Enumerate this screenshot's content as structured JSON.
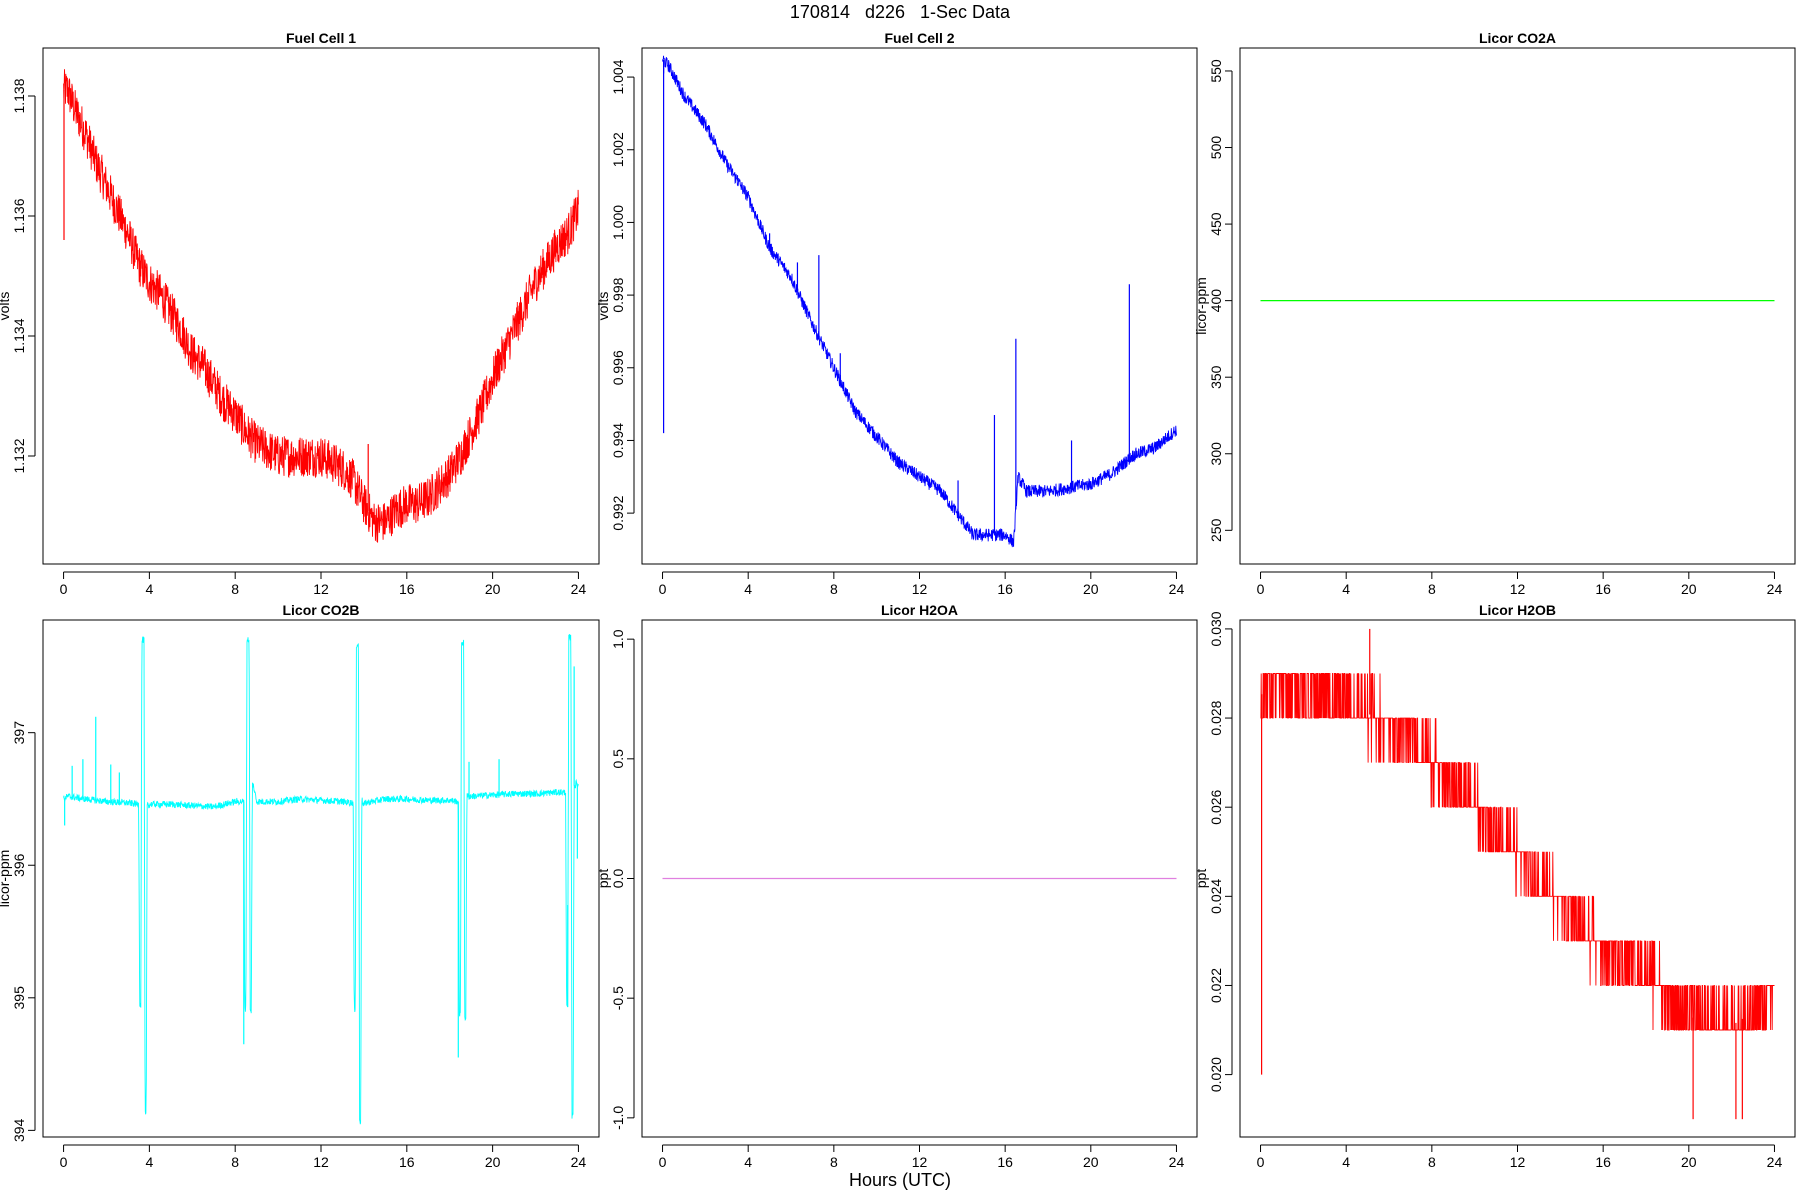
{
  "page": {
    "title": "170814   d226   1-Sec Data",
    "x_axis_title": "Hours (UTC)"
  },
  "chart_data": [
    {
      "type": "line",
      "title": "Fuel Cell 1",
      "xlabel": "",
      "ylabel": "volts",
      "color": "#ff0000",
      "xlim": [
        0,
        24
      ],
      "ylim": [
        1.1302,
        1.1388
      ],
      "xticks": [
        0,
        4,
        8,
        12,
        16,
        20,
        24
      ],
      "yticks": [
        1.132,
        1.134,
        1.136,
        1.138
      ],
      "ytick_labels": [
        "1.132",
        "1.134",
        "1.136",
        "1.138"
      ],
      "noise": 0.00035,
      "x": [
        0,
        0.2,
        0.5,
        1,
        1.5,
        2,
        2.5,
        3,
        3.5,
        4,
        4.5,
        5,
        5.5,
        6,
        6.5,
        7,
        7.5,
        8,
        8.5,
        9,
        9.5,
        10,
        10.5,
        11,
        11.5,
        12,
        12.5,
        13,
        13.5,
        14,
        14.5,
        15,
        15.5,
        16,
        16.5,
        17,
        17.5,
        18,
        18.5,
        19,
        19.5,
        20,
        20.5,
        21,
        21.5,
        22,
        22.5,
        23,
        23.5,
        24
      ],
      "y": [
        1.1381,
        1.1381,
        1.1378,
        1.1374,
        1.1369,
        1.1365,
        1.1361,
        1.1357,
        1.1352,
        1.1349,
        1.1347,
        1.1344,
        1.1341,
        1.1337,
        1.1335,
        1.1332,
        1.1329,
        1.1327,
        1.1324,
        1.1322,
        1.1321,
        1.132,
        1.132,
        1.132,
        1.132,
        1.132,
        1.1319,
        1.1318,
        1.1316,
        1.1312,
        1.1309,
        1.1309,
        1.1311,
        1.1312,
        1.1312,
        1.1313,
        1.1315,
        1.1317,
        1.132,
        1.1324,
        1.1328,
        1.1333,
        1.1337,
        1.1341,
        1.1345,
        1.1349,
        1.1352,
        1.1355,
        1.1357,
        1.1361
      ],
      "spikes": [
        [
          0.02,
          1.1356
        ],
        [
          14.2,
          1.1322
        ]
      ]
    },
    {
      "type": "line",
      "title": "Fuel Cell 2",
      "xlabel": "",
      "ylabel": "volts",
      "color": "#0000ff",
      "xlim": [
        0,
        24
      ],
      "ylim": [
        0.9906,
        1.0048
      ],
      "xticks": [
        0,
        4,
        8,
        12,
        16,
        20,
        24
      ],
      "yticks": [
        0.992,
        0.994,
        0.996,
        0.998,
        1.0,
        1.002,
        1.004
      ],
      "ytick_labels": [
        "0.992",
        "0.994",
        "0.996",
        "0.998",
        "1.000",
        "1.002",
        "1.004"
      ],
      "noise": 0.00018,
      "x": [
        0,
        0.3,
        1,
        2,
        3,
        4,
        5,
        6,
        7,
        8,
        9,
        10,
        11,
        12,
        13,
        14,
        14.5,
        15,
        15.5,
        16,
        16.4,
        16.6,
        17,
        18,
        19,
        20,
        21,
        22,
        23,
        24
      ],
      "y": [
        1.0045,
        1.0043,
        1.0035,
        1.0027,
        1.0016,
        1.0007,
        0.9993,
        0.9985,
        0.9972,
        0.996,
        0.9948,
        0.9941,
        0.9934,
        0.993,
        0.9926,
        0.9918,
        0.9914,
        0.9914,
        0.9914,
        0.9914,
        0.9912,
        0.993,
        0.9926,
        0.9926,
        0.9927,
        0.9928,
        0.9931,
        0.9936,
        0.9938,
        0.9943
      ],
      "spikes": [
        [
          0.05,
          0.9942
        ],
        [
          0.05,
          1.0041
        ],
        [
          3.5,
          1.0013
        ],
        [
          5.0,
          0.9997
        ],
        [
          6.3,
          0.9989
        ],
        [
          7.3,
          0.9991
        ],
        [
          8.3,
          0.9964
        ],
        [
          13.8,
          0.9929
        ],
        [
          15.5,
          0.9947
        ],
        [
          16.5,
          0.9968
        ],
        [
          19.1,
          0.994
        ],
        [
          21.8,
          0.9983
        ]
      ]
    },
    {
      "type": "line",
      "title": "Licor CO2A",
      "xlabel": "",
      "ylabel": "licor-ppm",
      "color": "#00ff00",
      "xlim": [
        0,
        24
      ],
      "ylim": [
        228,
        565
      ],
      "xticks": [
        0,
        4,
        8,
        12,
        16,
        20,
        24
      ],
      "yticks": [
        250,
        300,
        350,
        400,
        450,
        500,
        550
      ],
      "ytick_labels": [
        "250",
        "300",
        "350",
        "400",
        "450",
        "500",
        "550"
      ],
      "noise": 0,
      "x": [
        0,
        24
      ],
      "y": [
        400,
        400
      ],
      "spikes": []
    },
    {
      "type": "line",
      "title": "Licor CO2B",
      "xlabel": "",
      "ylabel": "licor-ppm",
      "color": "#00ffff",
      "xlim": [
        0,
        24
      ],
      "ylim": [
        393.95,
        397.85
      ],
      "xticks": [
        0,
        4,
        8,
        12,
        16,
        20,
        24
      ],
      "yticks": [
        394,
        395,
        396,
        397
      ],
      "ytick_labels": [
        "394",
        "395",
        "396",
        "397"
      ],
      "noise": 0.025,
      "x": [
        0,
        0.2,
        1,
        2,
        3,
        3.5,
        3.55,
        3.6,
        3.65,
        3.7,
        3.75,
        3.8,
        3.85,
        3.9,
        3.95,
        4.0,
        4.05,
        5,
        6,
        7,
        8,
        8.4,
        8.45,
        8.5,
        8.55,
        8.6,
        8.65,
        8.7,
        8.75,
        8.8,
        8.85,
        9,
        10,
        11,
        12,
        13,
        13.5,
        13.55,
        13.6,
        13.65,
        13.7,
        13.75,
        13.8,
        13.85,
        13.9,
        13.95,
        14.0,
        14.05,
        15,
        16,
        17,
        18,
        18.4,
        18.45,
        18.5,
        18.55,
        18.6,
        18.65,
        18.7,
        18.75,
        18.8,
        18.85,
        19,
        20,
        21,
        22,
        23,
        23.4,
        23.45,
        23.5,
        23.55,
        23.6,
        23.65,
        23.7,
        23.75,
        23.8,
        23.85,
        23.9,
        24
      ],
      "y": [
        396.5,
        396.52,
        396.5,
        396.48,
        396.47,
        396.46,
        394.95,
        394.95,
        397.7,
        397.7,
        397.7,
        394.12,
        394.12,
        396.47,
        396.46,
        396.45,
        396.46,
        396.46,
        396.45,
        396.44,
        396.48,
        396.48,
        394.92,
        394.92,
        397.7,
        397.7,
        397.7,
        394.9,
        394.9,
        396.62,
        396.6,
        396.48,
        396.48,
        396.5,
        396.49,
        396.48,
        396.47,
        394.9,
        394.9,
        397.66,
        397.66,
        397.66,
        394.06,
        394.06,
        396.5,
        396.47,
        396.45,
        396.47,
        396.5,
        396.5,
        396.49,
        396.49,
        396.48,
        394.88,
        394.88,
        397.68,
        397.68,
        397.68,
        394.85,
        394.85,
        396.52,
        396.52,
        396.52,
        396.53,
        396.54,
        396.54,
        396.55,
        396.55,
        394.93,
        394.93,
        397.72,
        397.72,
        397.72,
        394.11,
        394.11,
        396.6,
        396.6,
        396.62,
        396.6
      ],
      "spikes": [
        [
          0.05,
          396.3
        ],
        [
          0.4,
          396.75
        ],
        [
          0.9,
          396.8
        ],
        [
          1.5,
          397.12
        ],
        [
          2.2,
          396.76
        ],
        [
          2.6,
          396.7
        ],
        [
          8.4,
          394.65
        ],
        [
          18.4,
          394.55
        ],
        [
          18.9,
          396.78
        ],
        [
          20.3,
          396.8
        ],
        [
          23.5,
          395.7
        ],
        [
          23.95,
          396.05
        ],
        [
          23.8,
          397.5
        ]
      ]
    },
    {
      "type": "line",
      "title": "Licor H2OA",
      "xlabel": "",
      "ylabel": "ppt",
      "color": "#e080e0",
      "xlim": [
        0,
        24
      ],
      "ylim": [
        -1.08,
        1.08
      ],
      "xticks": [
        0,
        4,
        8,
        12,
        16,
        20,
        24
      ],
      "yticks": [
        -1.0,
        -0.5,
        0.0,
        0.5,
        1.0
      ],
      "ytick_labels": [
        "-1.0",
        "-0.5",
        "0.0",
        "0.5",
        "1.0"
      ],
      "noise": 0,
      "x": [
        0,
        24
      ],
      "y": [
        0,
        0
      ],
      "spikes": []
    },
    {
      "type": "line",
      "title": "Licor H2OB",
      "xlabel": "",
      "ylabel": "ppt",
      "color": "#ff0000",
      "xlim": [
        0,
        24
      ],
      "ylim": [
        0.0186,
        0.0302
      ],
      "xticks": [
        0,
        4,
        8,
        12,
        16,
        20,
        24
      ],
      "yticks": [
        0.02,
        0.022,
        0.024,
        0.026,
        0.028,
        0.03
      ],
      "ytick_labels": [
        "0.020",
        "0.022",
        "0.024",
        "0.026",
        "0.028",
        "0.030"
      ],
      "quantum": 0.001,
      "noise": 0.00062,
      "x": [
        0,
        0.3,
        1,
        2,
        3,
        4,
        5,
        6,
        7,
        8,
        9,
        10,
        11,
        12,
        13,
        14,
        15,
        16,
        17,
        18,
        19,
        20,
        21,
        22,
        23,
        24
      ],
      "y": [
        0.0285,
        0.0287,
        0.0286,
        0.0286,
        0.0285,
        0.0284,
        0.0281,
        0.0279,
        0.0275,
        0.027,
        0.0265,
        0.0261,
        0.0255,
        0.0249,
        0.0243,
        0.0238,
        0.0232,
        0.0228,
        0.0226,
        0.0222,
        0.0218,
        0.0213,
        0.0212,
        0.0211,
        0.0214,
        0.0218
      ],
      "spikes": [
        [
          0.05,
          0.02
        ],
        [
          20.2,
          0.019
        ],
        [
          22.2,
          0.019
        ],
        [
          22.5,
          0.019
        ],
        [
          5.1,
          0.03
        ]
      ]
    }
  ]
}
